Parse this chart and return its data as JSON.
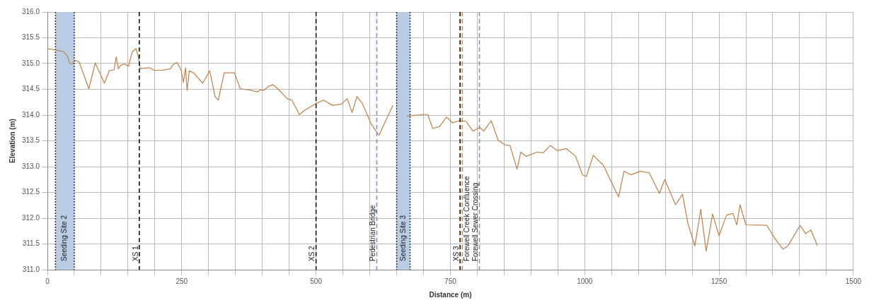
{
  "chart_data": {
    "type": "line",
    "xlabel": "Distance (m)",
    "ylabel": "Elevation (m)",
    "x": [
      0,
      17,
      30,
      37,
      41,
      46,
      52,
      59,
      77,
      89,
      106,
      115,
      124,
      128,
      132,
      137,
      144,
      151,
      158,
      165,
      169,
      173,
      190,
      198,
      213,
      229,
      233,
      240,
      243,
      249,
      253,
      257,
      260,
      264,
      272,
      289,
      302,
      312,
      318,
      329,
      348,
      359,
      380,
      390,
      397,
      403,
      412,
      420,
      429,
      446,
      455,
      469,
      478,
      501,
      514,
      530,
      547,
      558,
      567,
      576,
      586,
      603,
      617,
      643,
      656,
      669,
      700,
      708,
      717,
      730,
      743,
      754,
      767,
      779,
      792,
      805,
      812,
      826,
      839,
      852,
      861,
      874,
      881,
      891,
      911,
      923,
      936,
      949,
      962,
      966,
      983,
      996,
      1003,
      1016,
      1035,
      1051,
      1063,
      1073,
      1086,
      1103,
      1120,
      1139,
      1149,
      1169,
      1182,
      1192,
      1205,
      1216,
      1226,
      1238,
      1250,
      1264,
      1276,
      1283,
      1289,
      1300,
      1339,
      1355,
      1369,
      1378,
      1401,
      1411,
      1421,
      1433
    ],
    "series": [
      {
        "color": "#c0804a",
        "values": [
          315.29,
          315.26,
          315.23,
          315.15,
          315.01,
          314.99,
          315.06,
          315.03,
          314.51,
          315.01,
          314.62,
          314.86,
          314.88,
          315.13,
          314.9,
          314.97,
          314.99,
          314.95,
          315.23,
          315.29,
          315.13,
          314.9,
          314.92,
          314.87,
          314.87,
          314.9,
          314.97,
          315.02,
          314.99,
          314.87,
          314.63,
          314.92,
          314.48,
          314.86,
          314.82,
          314.62,
          314.86,
          314.36,
          314.29,
          314.82,
          314.82,
          314.51,
          314.48,
          314.45,
          314.49,
          314.48,
          314.56,
          314.59,
          314.51,
          314.32,
          314.29,
          314.01,
          314.09,
          314.23,
          314.29,
          314.19,
          314.21,
          314.32,
          314.05,
          314.36,
          314.23,
          313.82,
          313.61,
          314.19,
          null,
          313.98,
          314.01,
          314.01,
          313.74,
          313.78,
          313.96,
          313.85,
          313.89,
          313.88,
          313.69,
          313.76,
          313.69,
          313.89,
          313.51,
          313.42,
          313.41,
          312.95,
          313.28,
          313.2,
          313.28,
          313.27,
          313.41,
          313.31,
          313.34,
          313.35,
          313.2,
          312.84,
          312.81,
          313.22,
          313.02,
          312.67,
          312.41,
          312.91,
          312.84,
          312.91,
          312.88,
          312.48,
          312.75,
          312.26,
          312.46,
          311.9,
          311.46,
          312.17,
          311.36,
          312.08,
          311.66,
          312.06,
          312.09,
          311.87,
          312.26,
          311.87,
          311.86,
          311.59,
          311.4,
          311.46,
          311.86,
          311.7,
          311.77,
          311.47
        ]
      }
    ],
    "xlim": [
      0,
      1500
    ],
    "xticks": [
      0,
      {
        "value": 50,
        "label": null
      },
      {
        "value": 100,
        "label": null
      },
      {
        "value": 150,
        "label": null
      },
      {
        "value": 200,
        "label": null
      },
      250,
      {
        "value": 300,
        "label": null
      },
      {
        "value": 350,
        "label": null
      },
      {
        "value": 400,
        "label": null
      },
      {
        "value": 450,
        "label": null
      },
      500,
      {
        "value": 550,
        "label": null
      },
      {
        "value": 600,
        "label": null
      },
      {
        "value": 650,
        "label": null
      },
      {
        "value": 700,
        "label": null
      },
      750,
      {
        "value": 800,
        "label": null
      },
      {
        "value": 850,
        "label": null
      },
      {
        "value": 900,
        "label": null
      },
      {
        "value": 950,
        "label": null
      },
      1000,
      {
        "value": 1050,
        "label": null
      },
      {
        "value": 1100,
        "label": null
      },
      {
        "value": 1150,
        "label": null
      },
      {
        "value": 1200,
        "label": null
      },
      1250,
      {
        "value": 1300,
        "label": null
      },
      {
        "value": 1350,
        "label": null
      },
      {
        "value": 1400,
        "label": null
      },
      {
        "value": 1450,
        "label": null
      },
      1500
    ],
    "ylim": [
      311,
      316
    ],
    "yticks": [
      {
        "value": 311,
        "label": "311.0"
      },
      {
        "value": 311.5,
        "label": "311.5"
      },
      {
        "value": 312,
        "label": "312.0"
      },
      {
        "value": 312.5,
        "label": "312.5"
      },
      {
        "value": 313,
        "label": "313.0"
      },
      {
        "value": 313.5,
        "label": "313.5"
      },
      {
        "value": 314,
        "label": "314.0"
      },
      {
        "value": 314.5,
        "label": "314.5"
      },
      {
        "value": 315,
        "label": "315.0"
      },
      {
        "value": 315.5,
        "label": "315.5"
      },
      {
        "value": 316,
        "label": "316.0"
      }
    ],
    "grid": true,
    "legend": false,
    "marker": "none",
    "line_style": "solid",
    "bands": [
      {
        "axis": "x",
        "from": 15,
        "to": 50,
        "label": "Seeding Site 2",
        "color": "#b8cce4"
      },
      {
        "axis": "x",
        "from": 650,
        "to": 675,
        "label": "Seeding Site 3",
        "color": "#b8cce4"
      }
    ],
    "ref_lines": [
      {
        "axis": "x",
        "value": 171,
        "label": "XS 1",
        "color": "#000000",
        "line_style": "dashed"
      },
      {
        "axis": "x",
        "value": 500,
        "label": "XS 2",
        "color": "#000000",
        "line_style": "dashed"
      },
      {
        "axis": "x",
        "value": 613,
        "label": "Pedestrian Bridge",
        "color": "#7f8fc8",
        "line_style": "dashed"
      },
      {
        "axis": "x",
        "value": 768,
        "label": "XS 3",
        "color": "#000000",
        "line_style": "dashed"
      },
      {
        "axis": "x",
        "value": 772,
        "label": "Forewell Creek Confluence",
        "color": "#e08030",
        "line_style": "dashed"
      },
      {
        "axis": "x",
        "value": 804,
        "label": "Forewell Sewer Crossing",
        "color": "#7f8fc8",
        "line_style": "dashed"
      }
    ]
  }
}
